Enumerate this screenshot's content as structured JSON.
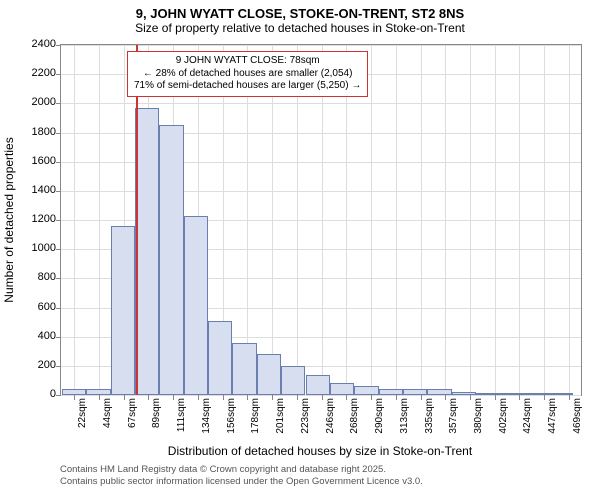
{
  "title": "9, JOHN WYATT CLOSE, STOKE-ON-TRENT, ST2 8NS",
  "subtitle": "Size of property relative to detached houses in Stoke-on-Trent",
  "chart": {
    "type": "histogram",
    "background_color": "#ffffff",
    "grid_color": "#dddddd",
    "border_color": "#888888",
    "bar_fill": "#d6deef",
    "bar_stroke": "#6a7fb0",
    "y_axis_label": "Number of detached properties",
    "x_axis_label": "Distribution of detached houses by size in Stoke-on-Trent",
    "ylim": [
      0,
      2400
    ],
    "y_ticks": [
      0,
      200,
      400,
      600,
      800,
      1000,
      1200,
      1400,
      1600,
      1800,
      2000,
      2200,
      2400
    ],
    "x_min": 10,
    "x_max": 480,
    "x_ticks": [
      22,
      44,
      67,
      89,
      111,
      134,
      156,
      178,
      201,
      223,
      246,
      268,
      290,
      313,
      335,
      357,
      380,
      402,
      424,
      447,
      469
    ],
    "x_tick_suffix": "sqm",
    "bar_width_sqm": 22,
    "bars": [
      {
        "start": 11,
        "value": 40
      },
      {
        "start": 33,
        "value": 40
      },
      {
        "start": 55,
        "value": 1160
      },
      {
        "start": 77,
        "value": 1970
      },
      {
        "start": 99,
        "value": 1850
      },
      {
        "start": 121,
        "value": 1230
      },
      {
        "start": 143,
        "value": 510
      },
      {
        "start": 165,
        "value": 360
      },
      {
        "start": 187,
        "value": 280
      },
      {
        "start": 209,
        "value": 200
      },
      {
        "start": 231,
        "value": 140
      },
      {
        "start": 253,
        "value": 80
      },
      {
        "start": 275,
        "value": 60
      },
      {
        "start": 297,
        "value": 40
      },
      {
        "start": 319,
        "value": 40
      },
      {
        "start": 341,
        "value": 40
      },
      {
        "start": 363,
        "value": 20
      },
      {
        "start": 385,
        "value": 10
      },
      {
        "start": 407,
        "value": 10
      },
      {
        "start": 429,
        "value": 10
      },
      {
        "start": 451,
        "value": 10
      }
    ],
    "reference_line": {
      "x": 78,
      "color": "#cc3333"
    },
    "annotation": {
      "border_color": "#cc3333",
      "lines": [
        "9 JOHN WYATT CLOSE: 78sqm",
        "← 28% of detached houses are smaller (2,054)",
        "71% of semi-detached houses are larger (5,250) →"
      ]
    }
  },
  "footer": {
    "line1": "Contains HM Land Registry data © Crown copyright and database right 2025.",
    "line2": "Contains public sector information licensed under the Open Government Licence v3.0."
  }
}
